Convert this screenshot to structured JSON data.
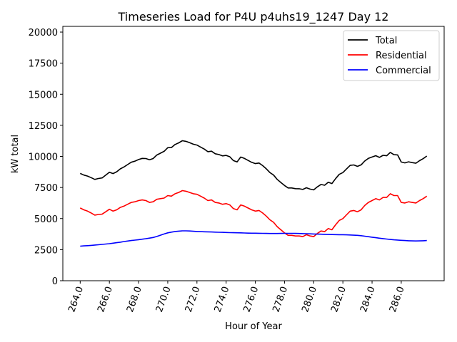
{
  "chart_data": {
    "type": "line",
    "title": "Timeseries Load for P4U p4uhs19_1247  Day 12",
    "xlabel": "Hour of Year",
    "ylabel": "kW total",
    "xlim": [
      262.81,
      288.94
    ],
    "ylim": [
      0,
      20460
    ],
    "xticks": [
      264,
      266,
      268,
      270,
      272,
      274,
      276,
      278,
      280,
      282,
      284,
      286
    ],
    "xtick_labels": [
      "264.0",
      "266.0",
      "268.0",
      "270.0",
      "272.0",
      "274.0",
      "276.0",
      "278.0",
      "280.0",
      "282.0",
      "284.0",
      "286.0"
    ],
    "yticks": [
      0,
      2500,
      5000,
      7500,
      10000,
      12500,
      15000,
      17500,
      20000
    ],
    "ytick_labels": [
      "0",
      "2500",
      "5000",
      "7500",
      "10000",
      "12500",
      "15000",
      "17500",
      "20000"
    ],
    "grid": false,
    "legend_placement": "top-right",
    "x_start": 264,
    "x_step": 0.25,
    "series": [
      {
        "name": "Total",
        "color": "#000000",
        "values": [
          8630,
          8500,
          8420,
          8295,
          8150,
          8225,
          8270,
          8500,
          8730,
          8620,
          8760,
          9000,
          9150,
          9340,
          9530,
          9615,
          9750,
          9840,
          9830,
          9730,
          9830,
          10110,
          10260,
          10410,
          10700,
          10710,
          10960,
          11090,
          11260,
          11210,
          11100,
          10980,
          10910,
          10750,
          10590,
          10380,
          10420,
          10210,
          10150,
          10040,
          10080,
          9970,
          9660,
          9555,
          9950,
          9840,
          9680,
          9525,
          9420,
          9465,
          9260,
          9005,
          8700,
          8500,
          8150,
          7905,
          7660,
          7460,
          7460,
          7405,
          7400,
          7340,
          7480,
          7370,
          7310,
          7550,
          7740,
          7680,
          7920,
          7815,
          8210,
          8555,
          8700,
          8990,
          9280,
          9315,
          9200,
          9320,
          9630,
          9840,
          9950,
          10060,
          9920,
          10085,
          10050,
          10320,
          10140,
          10120,
          9550,
          9480,
          9565,
          9505,
          9450,
          9655,
          9815,
          10030
        ]
      },
      {
        "name": "Residential",
        "color": "#ff0000",
        "values": [
          5850,
          5700,
          5600,
          5450,
          5280,
          5330,
          5350,
          5550,
          5750,
          5600,
          5700,
          5900,
          6000,
          6150,
          6300,
          6350,
          6450,
          6500,
          6450,
          6300,
          6350,
          6550,
          6600,
          6650,
          6850,
          6800,
          7000,
          7100,
          7250,
          7200,
          7100,
          7000,
          6950,
          6800,
          6650,
          6450,
          6500,
          6300,
          6250,
          6150,
          6200,
          6100,
          5800,
          5700,
          6100,
          6000,
          5850,
          5700,
          5600,
          5650,
          5450,
          5200,
          4900,
          4700,
          4350,
          4100,
          3850,
          3650,
          3650,
          3600,
          3600,
          3550,
          3700,
          3600,
          3550,
          3800,
          4000,
          3950,
          4200,
          4100,
          4500,
          4850,
          5000,
          5300,
          5600,
          5650,
          5550,
          5700,
          6050,
          6300,
          6450,
          6600,
          6500,
          6700,
          6700,
          7000,
          6850,
          6850,
          6300,
          6250,
          6350,
          6300,
          6250,
          6450,
          6600,
          6800
        ]
      },
      {
        "name": "Commercial",
        "color": "#0000ff",
        "values": [
          2780,
          2800,
          2820,
          2845,
          2870,
          2895,
          2920,
          2950,
          2980,
          3020,
          3060,
          3100,
          3150,
          3190,
          3230,
          3265,
          3300,
          3340,
          3380,
          3430,
          3480,
          3560,
          3660,
          3760,
          3850,
          3910,
          3960,
          3990,
          4010,
          4010,
          4000,
          3980,
          3960,
          3950,
          3940,
          3930,
          3920,
          3910,
          3900,
          3890,
          3880,
          3870,
          3860,
          3855,
          3850,
          3840,
          3830,
          3825,
          3820,
          3815,
          3810,
          3805,
          3800,
          3800,
          3800,
          3805,
          3810,
          3810,
          3810,
          3805,
          3800,
          3790,
          3780,
          3770,
          3760,
          3750,
          3740,
          3730,
          3720,
          3715,
          3710,
          3705,
          3700,
          3690,
          3680,
          3665,
          3650,
          3620,
          3580,
          3540,
          3500,
          3460,
          3420,
          3385,
          3350,
          3320,
          3290,
          3270,
          3250,
          3230,
          3215,
          3205,
          3200,
          3205,
          3215,
          3230
        ]
      }
    ]
  }
}
